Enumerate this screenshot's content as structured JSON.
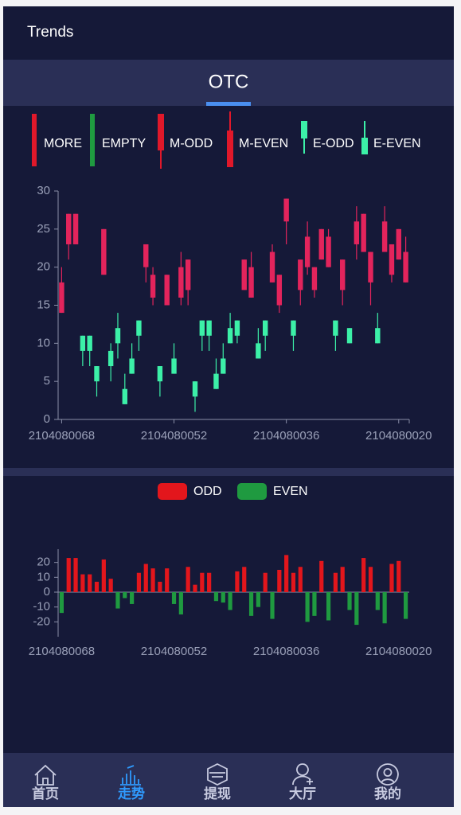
{
  "header": {
    "title": "Trends"
  },
  "tab": "OTC",
  "nav": [
    "首页",
    "走势",
    "提现",
    "大厅",
    "我的"
  ],
  "active_nav": 1,
  "active_color": "#2f9bff",
  "chart_data": [
    {
      "type": "candlestick",
      "legend": [
        {
          "name": "MORE",
          "color": "#e0182a"
        },
        {
          "name": "EMPTY",
          "color": "#1f9a40"
        },
        {
          "name": "M-ODD",
          "color": "#e0182a"
        },
        {
          "name": "M-EVEN",
          "color": "#e0182a"
        },
        {
          "name": "E-ODD",
          "color": "#3cf0a8"
        },
        {
          "name": "E-EVEN",
          "color": "#3cf0a8"
        }
      ],
      "categories": [
        "2104080068",
        null,
        null,
        null,
        null,
        null,
        null,
        null,
        null,
        null,
        null,
        null,
        null,
        null,
        null,
        null,
        "2104080052",
        null,
        null,
        null,
        null,
        null,
        null,
        null,
        null,
        null,
        null,
        null,
        null,
        null,
        null,
        null,
        "2104080036",
        null,
        null,
        null,
        null,
        null,
        null,
        null,
        null,
        null,
        null,
        null,
        null,
        null,
        null,
        null,
        "2104080020",
        null
      ],
      "open": [
        14,
        23,
        23,
        11,
        11,
        7,
        19,
        9,
        12,
        4,
        8,
        13,
        20,
        16,
        7,
        15,
        8,
        16,
        17,
        5,
        13,
        13,
        6,
        8,
        12,
        13,
        17,
        16,
        10,
        13,
        18,
        15,
        26,
        13,
        17,
        20,
        17,
        21,
        20,
        13,
        17,
        12,
        23,
        22,
        18,
        12,
        22,
        19,
        21,
        18
      ],
      "close": [
        18,
        27,
        27,
        9,
        9,
        5,
        25,
        7,
        10,
        2,
        6,
        11,
        23,
        19,
        5,
        19,
        6,
        20,
        21,
        3,
        11,
        11,
        4,
        6,
        10,
        11,
        21,
        20,
        8,
        11,
        22,
        19,
        29,
        11,
        21,
        24,
        20,
        25,
        24,
        11,
        21,
        10,
        26,
        27,
        22,
        10,
        26,
        23,
        25,
        22
      ],
      "low": [
        14,
        21,
        23,
        7,
        7,
        3,
        19,
        5,
        8,
        2,
        6,
        9,
        18,
        15,
        3,
        15,
        6,
        15,
        15,
        1,
        9,
        9,
        4,
        6,
        10,
        10,
        17,
        16,
        8,
        9,
        18,
        14,
        23,
        9,
        15,
        19,
        16,
        21,
        20,
        9,
        15,
        10,
        21,
        22,
        15,
        10,
        22,
        18,
        21,
        18
      ],
      "high": [
        20,
        27,
        27,
        11,
        11,
        7,
        25,
        10,
        14,
        6,
        10,
        13,
        23,
        20,
        7,
        19,
        10,
        22,
        21,
        5,
        13,
        13,
        8,
        10,
        14,
        13,
        21,
        22,
        12,
        13,
        23,
        19,
        29,
        13,
        21,
        26,
        20,
        25,
        25,
        13,
        21,
        12,
        28,
        27,
        22,
        14,
        28,
        23,
        25,
        24
      ],
      "rising_color": "#e3245c",
      "falling_color": "#3cf0a8",
      "ylim": [
        0,
        30
      ],
      "yticks": [
        0,
        5,
        10,
        15,
        20,
        25,
        30
      ],
      "grid": false
    },
    {
      "type": "bar",
      "categories": [
        "2104080068",
        null,
        null,
        null,
        null,
        null,
        null,
        null,
        null,
        null,
        null,
        null,
        null,
        null,
        null,
        null,
        "2104080052",
        null,
        null,
        null,
        null,
        null,
        null,
        null,
        null,
        null,
        null,
        null,
        null,
        null,
        null,
        null,
        "2104080036",
        null,
        null,
        null,
        null,
        null,
        null,
        null,
        null,
        null,
        null,
        null,
        null,
        null,
        null,
        null,
        "2104080020",
        null
      ],
      "series": [
        {
          "name": "ODD",
          "color": "#e3161c",
          "values": [
            null,
            23,
            23,
            12,
            12,
            7,
            22,
            9,
            null,
            null,
            null,
            13,
            19,
            16,
            7,
            16,
            null,
            null,
            17,
            5,
            13,
            13,
            null,
            null,
            null,
            14,
            17,
            null,
            null,
            13,
            null,
            15,
            25,
            13,
            17,
            null,
            null,
            21,
            null,
            13,
            17,
            null,
            null,
            23,
            17,
            null,
            null,
            19,
            21,
            null
          ]
        },
        {
          "name": "EVEN",
          "color": "#1f9a40",
          "values": [
            -14,
            null,
            null,
            null,
            null,
            null,
            null,
            null,
            -11,
            -4,
            -8,
            null,
            null,
            null,
            null,
            null,
            -8,
            -15,
            null,
            null,
            null,
            null,
            -6,
            -7,
            -12,
            null,
            null,
            -16,
            -10,
            null,
            -18,
            null,
            null,
            null,
            null,
            -20,
            -16,
            null,
            -19,
            null,
            null,
            -12,
            -22,
            null,
            null,
            -12,
            -21,
            null,
            null,
            -18
          ]
        }
      ],
      "ylim": [
        -30,
        30
      ],
      "yticks": [
        -20,
        -10,
        0,
        10,
        20
      ],
      "grid": false
    }
  ]
}
